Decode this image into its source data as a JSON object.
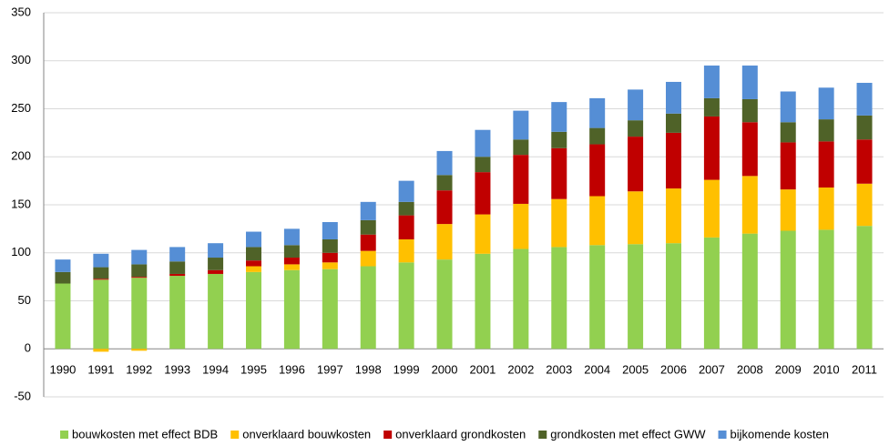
{
  "chart_data": {
    "type": "stacked_bar",
    "categories": [
      "1990",
      "1991",
      "1992",
      "1993",
      "1994",
      "1995",
      "1996",
      "1997",
      "1998",
      "1999",
      "2000",
      "2001",
      "2002",
      "2003",
      "2004",
      "2005",
      "2006",
      "2007",
      "2008",
      "2009",
      "2010",
      "2011"
    ],
    "series": [
      {
        "name": "bouwkosten met effect BDB",
        "color": "#92d050",
        "values": [
          68,
          72,
          74,
          76,
          78,
          80,
          82,
          83,
          86,
          90,
          93,
          99,
          104,
          106,
          108,
          109,
          110,
          116,
          120,
          123,
          124,
          128
        ]
      },
      {
        "name": "onverklaard bouwkosten",
        "color": "#ffc000",
        "values": [
          0,
          -3,
          -2,
          0,
          0,
          6,
          6,
          7,
          16,
          24,
          37,
          41,
          47,
          50,
          51,
          55,
          57,
          60,
          60,
          43,
          44,
          44
        ]
      },
      {
        "name": "onverklaard grondkosten",
        "color": "#c00000",
        "values": [
          0,
          1,
          1,
          2,
          4,
          6,
          7,
          10,
          17,
          25,
          35,
          44,
          51,
          53,
          54,
          57,
          58,
          66,
          56,
          49,
          48,
          46
        ]
      },
      {
        "name": "grondkosten met effect GWW",
        "color": "#4f6228",
        "values": [
          12,
          12,
          13,
          13,
          13,
          14,
          13,
          14,
          15,
          14,
          16,
          16,
          16,
          17,
          17,
          17,
          20,
          19,
          24,
          21,
          23,
          25
        ]
      },
      {
        "name": "bijkomende kosten",
        "color": "#558ed5",
        "values": [
          13,
          14,
          15,
          15,
          15,
          16,
          17,
          18,
          19,
          22,
          25,
          28,
          30,
          31,
          31,
          32,
          33,
          34,
          35,
          32,
          33,
          34
        ]
      }
    ],
    "ylim": [
      -50,
      350
    ],
    "yticks": [
      -50,
      0,
      50,
      100,
      150,
      200,
      250,
      300,
      350
    ],
    "grid": true,
    "legend": "bottom"
  }
}
